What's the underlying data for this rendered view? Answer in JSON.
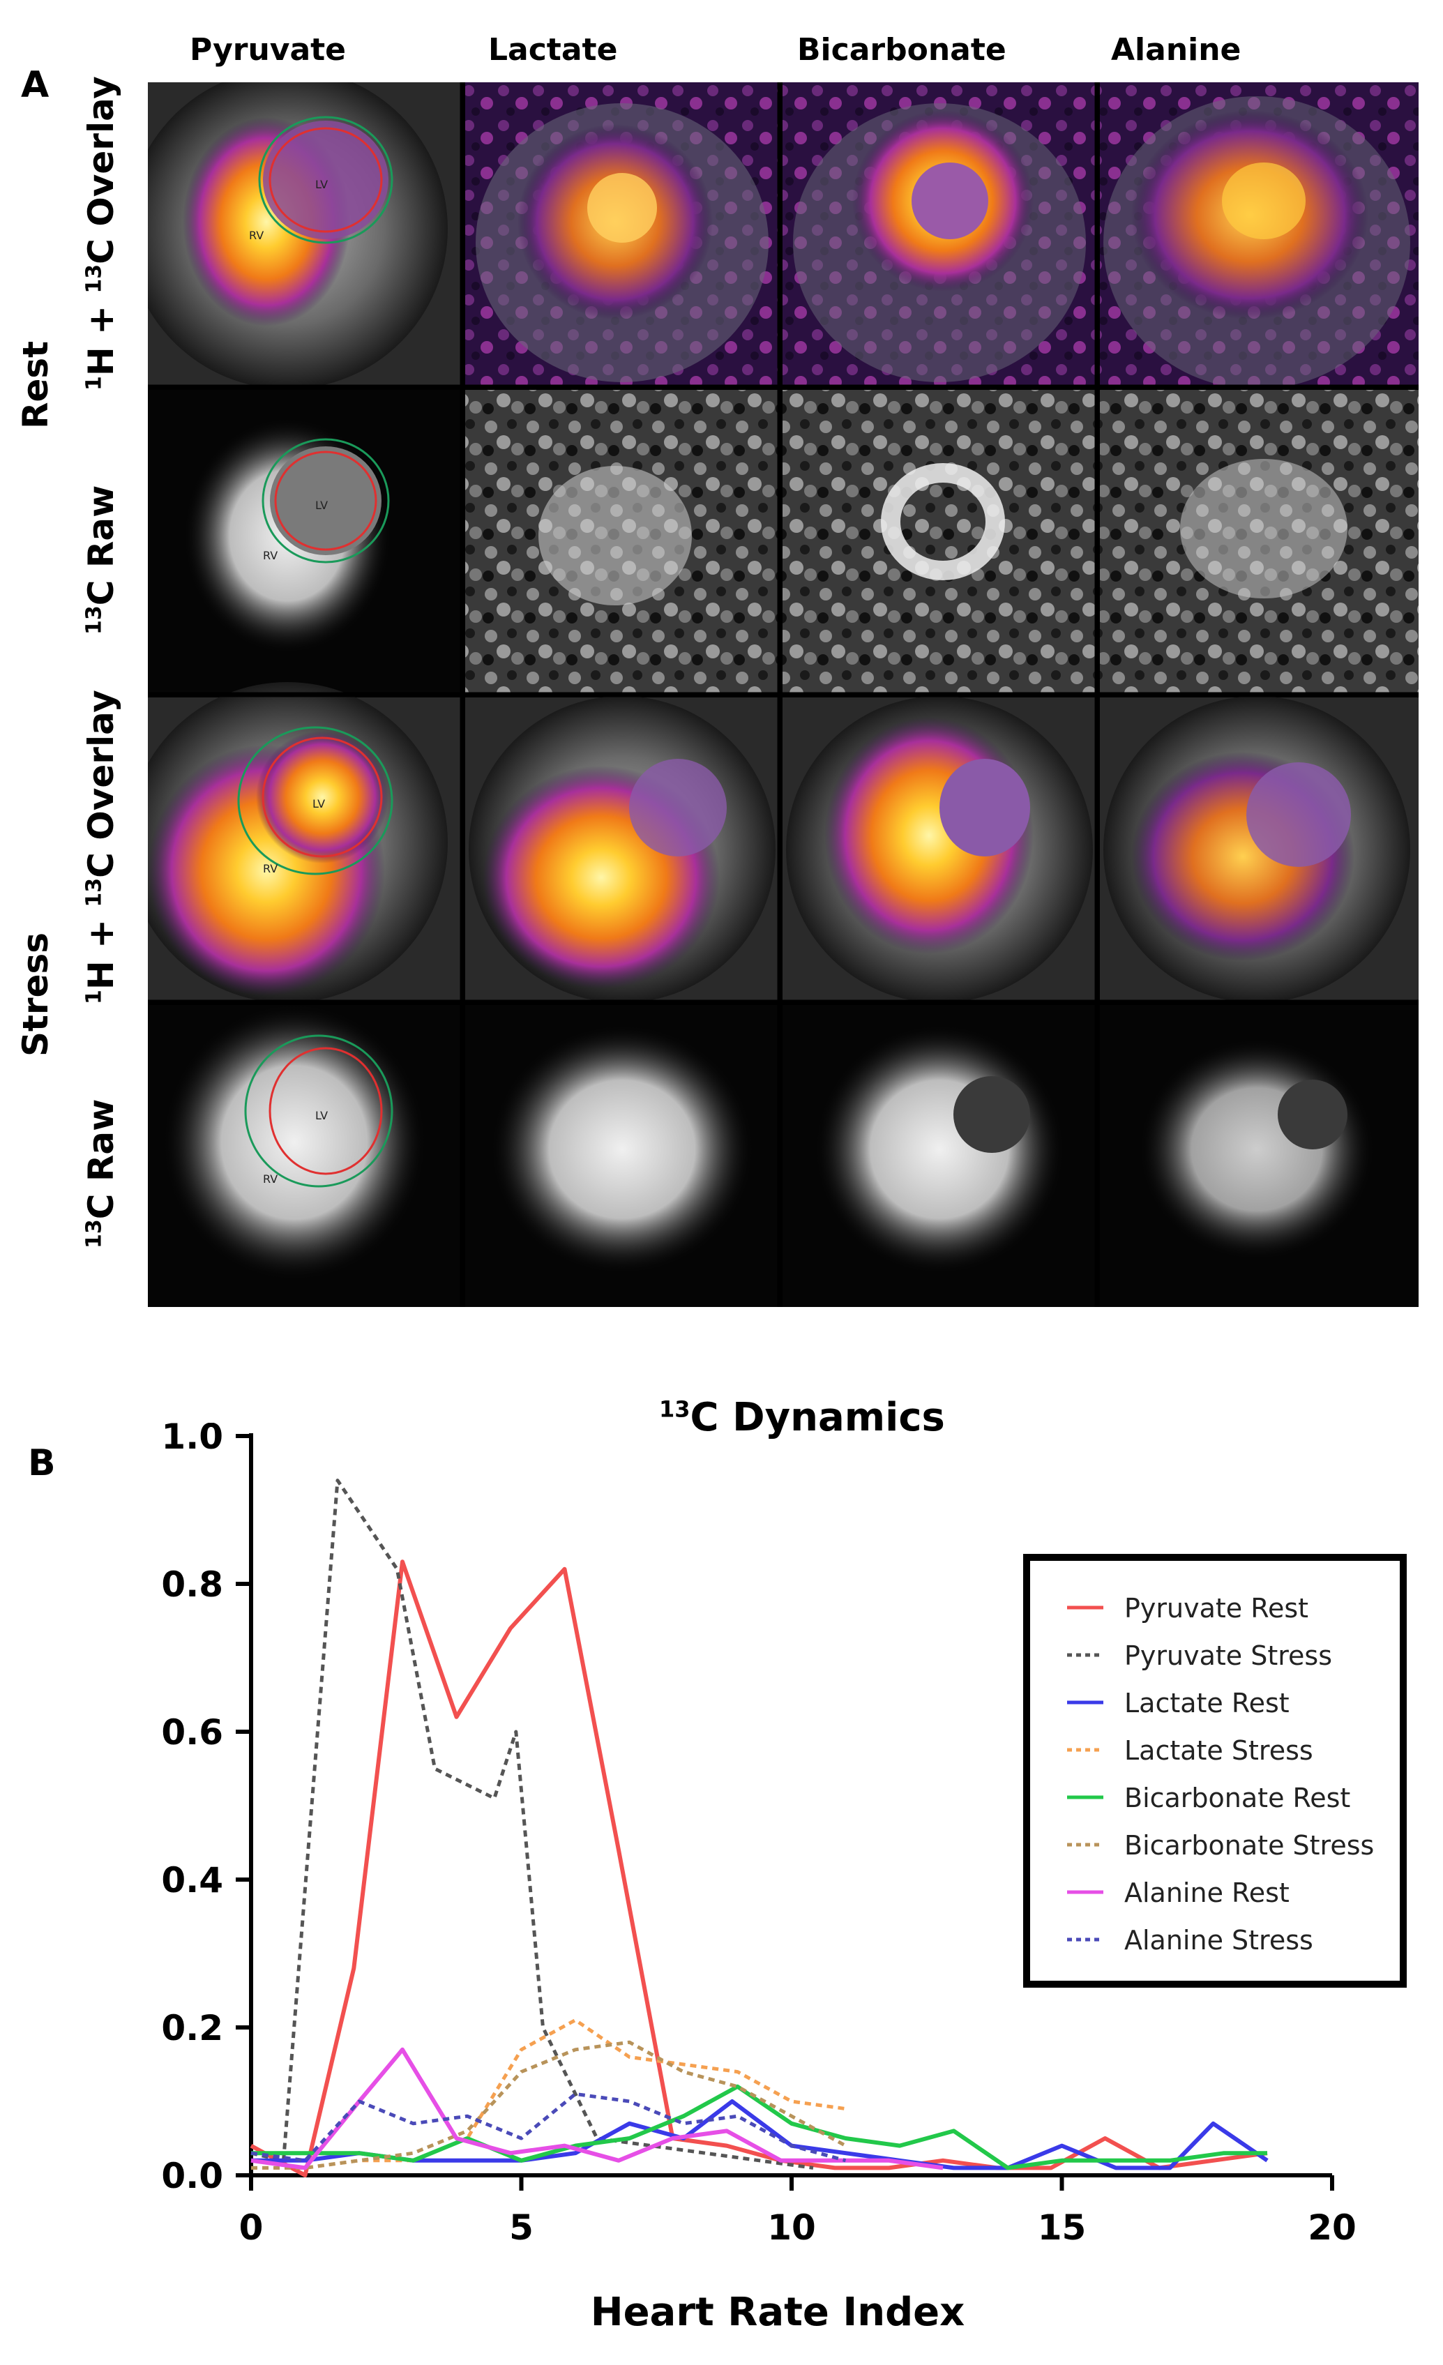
{
  "panel_a": {
    "letter": "A",
    "columns": [
      "Pyruvate",
      "Lactate",
      "Bicarbonate",
      "Alanine"
    ],
    "conditions": [
      "Rest",
      "Stress"
    ],
    "row_overlay": {
      "sup1": "1",
      "t1": "H + ",
      "sup2": "13",
      "t2": "C Overlay"
    },
    "row_raw": {
      "sup": "13",
      "t": "C Raw"
    },
    "roi_labels": {
      "lv": "LV",
      "rv": "RV"
    }
  },
  "panel_b": {
    "letter": "B",
    "title_sup": "13",
    "title_rest": "C Dynamics"
  },
  "colors": {
    "pyruvate_rest": "#f2504f",
    "pyruvate_stress": "#555555",
    "lactate_rest": "#3a3ae8",
    "lactate_stress": "#f5a050",
    "bicarbonate_rest": "#22c84a",
    "bicarbonate_stress": "#b8935a",
    "alanine_rest": "#e64fe6",
    "alanine_stress": "#4a4ab8",
    "lv_contour": "#e03030",
    "epi_contour": "#1a9a5a"
  },
  "chart_data": {
    "type": "line",
    "title": "13C Dynamics",
    "xlabel": "Heart Rate Index",
    "ylabel": "",
    "xlim": [
      0,
      20
    ],
    "ylim": [
      0,
      1.0
    ],
    "x_ticks": [
      "0",
      "5",
      "10",
      "15",
      "20"
    ],
    "y_ticks": [
      "0.0",
      "0.2",
      "0.4",
      "0.6",
      "0.8",
      "1.0"
    ],
    "legend_position": "right",
    "series": [
      {
        "name": "Pyruvate Rest",
        "style": "solid",
        "color": "#f2504f",
        "x": [
          0,
          1,
          1.9,
          2.8,
          3.8,
          4.8,
          5.8,
          6.8,
          7.8,
          8.8,
          9.8,
          10.8,
          11.8,
          12.8,
          13.8,
          14.8,
          15.8,
          16.8,
          17.8,
          18.8
        ],
        "y": [
          0.04,
          0.0,
          0.28,
          0.83,
          0.62,
          0.74,
          0.82,
          0.44,
          0.05,
          0.04,
          0.02,
          0.01,
          0.01,
          0.02,
          0.01,
          0.01,
          0.05,
          0.01,
          0.02,
          0.03
        ]
      },
      {
        "name": "Pyruvate Stress",
        "style": "dotted",
        "color": "#555555",
        "x": [
          0,
          0.6,
          1.6,
          2.7,
          3.4,
          4.5,
          4.9,
          5.4,
          6.4,
          7.4,
          8.4,
          9.4,
          10.4
        ],
        "y": [
          0.03,
          0.02,
          0.94,
          0.82,
          0.55,
          0.51,
          0.6,
          0.2,
          0.05,
          0.04,
          0.03,
          0.02,
          0.01
        ]
      },
      {
        "name": "Lactate Rest",
        "style": "solid",
        "color": "#3a3ae8",
        "x": [
          0,
          1,
          2,
          3,
          4,
          5,
          6,
          7,
          8,
          8.9,
          10,
          11,
          12,
          13,
          14,
          15,
          16,
          17,
          17.8,
          18.8
        ],
        "y": [
          0.02,
          0.02,
          0.03,
          0.02,
          0.02,
          0.02,
          0.03,
          0.07,
          0.05,
          0.1,
          0.04,
          0.03,
          0.02,
          0.01,
          0.01,
          0.04,
          0.01,
          0.01,
          0.07,
          0.02
        ]
      },
      {
        "name": "Lactate Stress",
        "style": "dotted",
        "color": "#f5a050",
        "x": [
          0,
          1,
          2,
          3,
          4,
          5,
          6,
          7,
          8,
          9,
          10,
          11
        ],
        "y": [
          0.01,
          0.01,
          0.02,
          0.02,
          0.05,
          0.17,
          0.21,
          0.16,
          0.15,
          0.14,
          0.1,
          0.09
        ]
      },
      {
        "name": "Bicarbonate Rest",
        "style": "solid",
        "color": "#22c84a",
        "x": [
          0,
          1,
          2,
          3,
          4,
          5,
          6,
          7,
          8,
          9,
          10,
          11,
          12,
          13,
          14,
          15,
          16,
          17,
          18,
          18.8
        ],
        "y": [
          0.03,
          0.03,
          0.03,
          0.02,
          0.05,
          0.02,
          0.04,
          0.05,
          0.08,
          0.12,
          0.07,
          0.05,
          0.04,
          0.06,
          0.01,
          0.02,
          0.02,
          0.02,
          0.03,
          0.03
        ]
      },
      {
        "name": "Bicarbonate Stress",
        "style": "dotted",
        "color": "#b8935a",
        "x": [
          0,
          1,
          2,
          3,
          4,
          5,
          6,
          7,
          8,
          9,
          10,
          11
        ],
        "y": [
          0.01,
          0.01,
          0.02,
          0.03,
          0.06,
          0.14,
          0.17,
          0.18,
          0.14,
          0.12,
          0.08,
          0.04
        ]
      },
      {
        "name": "Alanine Rest",
        "style": "solid",
        "color": "#e64fe6",
        "x": [
          0,
          1,
          2,
          2.8,
          3.8,
          4.8,
          5.8,
          6.8,
          7.8,
          8.8,
          9.8,
          10.8,
          11.8,
          12.8
        ],
        "y": [
          0.02,
          0.01,
          0.1,
          0.17,
          0.05,
          0.03,
          0.04,
          0.02,
          0.05,
          0.06,
          0.02,
          0.02,
          0.02,
          0.01
        ]
      },
      {
        "name": "Alanine Stress",
        "style": "dotted",
        "color": "#4a4ab8",
        "x": [
          0,
          1,
          2,
          3,
          4,
          5,
          6,
          7,
          8,
          9,
          10,
          11
        ],
        "y": [
          0.03,
          0.02,
          0.1,
          0.07,
          0.08,
          0.05,
          0.11,
          0.1,
          0.07,
          0.08,
          0.04,
          0.02
        ]
      }
    ]
  }
}
